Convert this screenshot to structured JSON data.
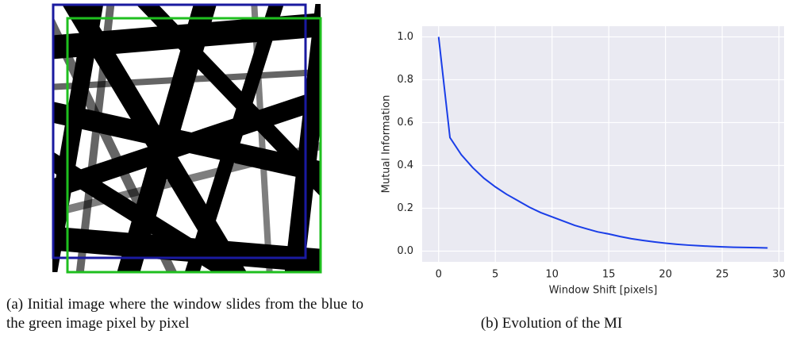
{
  "figure": {
    "caption_a": "(a) Initial image where the window slides from the blue to the green image pixel by pixel",
    "caption_b": "(b) Evolution of the MI"
  },
  "chart_data": {
    "type": "line",
    "x_label": "Window Shift [pixels]",
    "y_label": "Mutual Information",
    "x": [
      0,
      1,
      2,
      3,
      4,
      5,
      6,
      7,
      8,
      9,
      10,
      11,
      12,
      13,
      14,
      15,
      16,
      17,
      18,
      19,
      20,
      21,
      22,
      23,
      24,
      25,
      26,
      27,
      28,
      29
    ],
    "values": [
      1.0,
      0.53,
      0.45,
      0.39,
      0.34,
      0.3,
      0.265,
      0.235,
      0.205,
      0.18,
      0.16,
      0.14,
      0.12,
      0.105,
      0.09,
      0.08,
      0.068,
      0.058,
      0.05,
      0.043,
      0.037,
      0.032,
      0.028,
      0.025,
      0.022,
      0.02,
      0.018,
      0.017,
      0.016,
      0.015
    ],
    "color": "#1a3ee8",
    "xlim": [
      -1.45,
      30.45
    ],
    "ylim": [
      -0.05,
      1.05
    ],
    "xticks": [
      0,
      5,
      10,
      15,
      20,
      25,
      30
    ],
    "yticks": [
      {
        "value": 0,
        "label": "0.0"
      },
      {
        "value": 0.2,
        "label": "0.2"
      },
      {
        "value": 0.4,
        "label": "0.4"
      },
      {
        "value": 0.6,
        "label": "0.6"
      },
      {
        "value": 0.8,
        "label": "0.8"
      },
      {
        "value": 1,
        "label": "1.0"
      }
    ],
    "grid": true
  }
}
